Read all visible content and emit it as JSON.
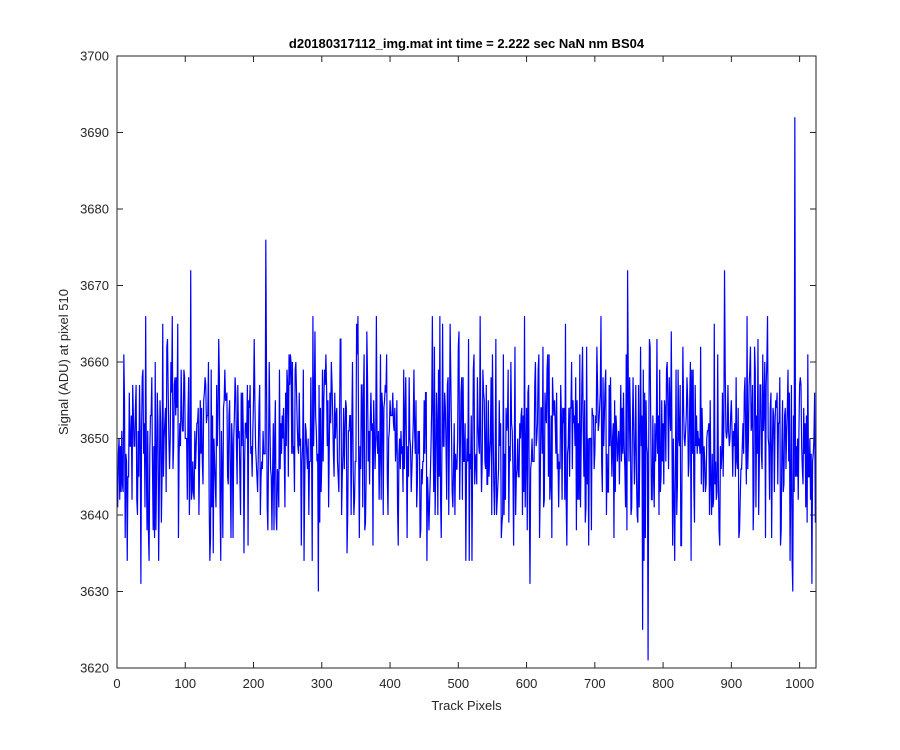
{
  "chart_data": {
    "type": "line",
    "title": "d20180317112_img.mat int time = 2.222 sec  NaN nm BS04",
    "xlabel": "Track Pixels",
    "ylabel": "Signal (ADU) at pixel 510",
    "xlim": [
      0,
      1024
    ],
    "ylim": [
      3620,
      3700
    ],
    "xticks": [
      0,
      100,
      200,
      300,
      400,
      500,
      600,
      700,
      800,
      900,
      1000
    ],
    "yticks": [
      3620,
      3630,
      3640,
      3650,
      3660,
      3670,
      3680,
      3690,
      3700
    ],
    "grid": false,
    "line_color": "#0000ff",
    "series": [
      {
        "x_start": 1,
        "x_step": 1,
        "summary": "noisy signal centered near 3650 ADU, mostly between 3635 and 3665",
        "peaks": [
          [
            108,
            3672
          ],
          [
            218,
            3676
          ],
          [
            748,
            3672
          ],
          [
            890,
            3672
          ],
          [
            993,
            3692
          ]
        ],
        "troughs": [
          [
            35,
            3631
          ],
          [
            295,
            3630
          ],
          [
            605,
            3631
          ],
          [
            770,
            3625
          ],
          [
            778,
            3621
          ],
          [
            990,
            3630
          ],
          [
            1018,
            3631
          ]
        ]
      }
    ]
  }
}
